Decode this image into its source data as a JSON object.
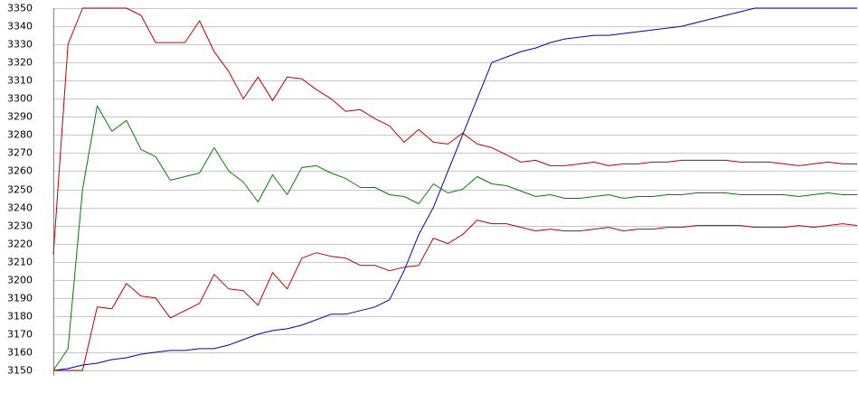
{
  "chart_data": {
    "type": "line",
    "title": "",
    "xlabel": "",
    "ylabel": "",
    "ylim": [
      3150,
      3350
    ],
    "yticks": [
      3150,
      3160,
      3170,
      3180,
      3190,
      3200,
      3210,
      3220,
      3230,
      3240,
      3250,
      3260,
      3270,
      3280,
      3290,
      3300,
      3310,
      3320,
      3330,
      3340,
      3350
    ],
    "grid": true,
    "legend": "none",
    "x": [
      0,
      1,
      2,
      3,
      4,
      5,
      6,
      7,
      8,
      9,
      10,
      11,
      12,
      13,
      14,
      15,
      16,
      17,
      18,
      19,
      20,
      21,
      22,
      23,
      24,
      25,
      26,
      27,
      28,
      29,
      30,
      31,
      32,
      33,
      34,
      35,
      36,
      37,
      38,
      39,
      40,
      41,
      42,
      43,
      44,
      45,
      46,
      47,
      48,
      49,
      50,
      51,
      52,
      53,
      54,
      55
    ],
    "series": [
      {
        "color": "#0000c0",
        "values": [
          3150,
          3151,
          3153,
          3154,
          3156,
          3157,
          3159,
          3160,
          3161,
          3161,
          3162,
          3162,
          3164,
          3167,
          3170,
          3172,
          3173,
          3175,
          3178,
          3181,
          3181,
          3183,
          3185,
          3189,
          3205,
          3225,
          3240,
          3260,
          3280,
          3300,
          3320,
          3323,
          3326,
          3328,
          3331,
          3333,
          3334,
          3335,
          3335,
          3336,
          3337,
          3338,
          3339,
          3340,
          3342,
          3344,
          3346,
          3348,
          3350,
          3350,
          3350,
          3350,
          3350,
          3350,
          3350,
          3350
        ]
      },
      {
        "color": "#c00000",
        "values": [
          3214,
          3330,
          3350,
          3350,
          3350,
          3350,
          3346,
          3331,
          3331,
          3331,
          3343,
          3326,
          3315,
          3300,
          3312,
          3299,
          3312,
          3311,
          3305,
          3300,
          3293,
          3294,
          3289,
          3285,
          3276,
          3283,
          3276,
          3275,
          3281,
          3275,
          3273,
          3269,
          3265,
          3266,
          3263,
          3263,
          3264,
          3265,
          3263,
          3264,
          3264,
          3265,
          3265,
          3266,
          3266,
          3266,
          3266,
          3265,
          3265,
          3265,
          3264,
          3263,
          3264,
          3265,
          3264,
          3264
        ]
      },
      {
        "color": "#008000",
        "values": [
          3150,
          3162,
          3250,
          3296,
          3282,
          3288,
          3272,
          3268,
          3255,
          3257,
          3259,
          3273,
          3260,
          3254,
          3243,
          3258,
          3247,
          3262,
          3263,
          3259,
          3256,
          3251,
          3251,
          3247,
          3246,
          3242,
          3253,
          3248,
          3250,
          3257,
          3253,
          3252,
          3249,
          3246,
          3247,
          3245,
          3245,
          3246,
          3247,
          3245,
          3246,
          3246,
          3247,
          3247,
          3248,
          3248,
          3248,
          3247,
          3247,
          3247,
          3247,
          3246,
          3247,
          3248,
          3247,
          3247
        ]
      },
      {
        "color": "#c00000",
        "values": [
          3150,
          3150,
          3150,
          3185,
          3184,
          3198,
          3191,
          3190,
          3179,
          3183,
          3187,
          3203,
          3195,
          3194,
          3186,
          3204,
          3195,
          3212,
          3215,
          3213,
          3212,
          3208,
          3208,
          3205,
          3207,
          3208,
          3223,
          3220,
          3225,
          3233,
          3231,
          3231,
          3229,
          3227,
          3228,
          3227,
          3227,
          3228,
          3229,
          3227,
          3228,
          3228,
          3229,
          3229,
          3230,
          3230,
          3230,
          3230,
          3229,
          3229,
          3229,
          3230,
          3229,
          3230,
          3231,
          3230
        ]
      }
    ]
  }
}
